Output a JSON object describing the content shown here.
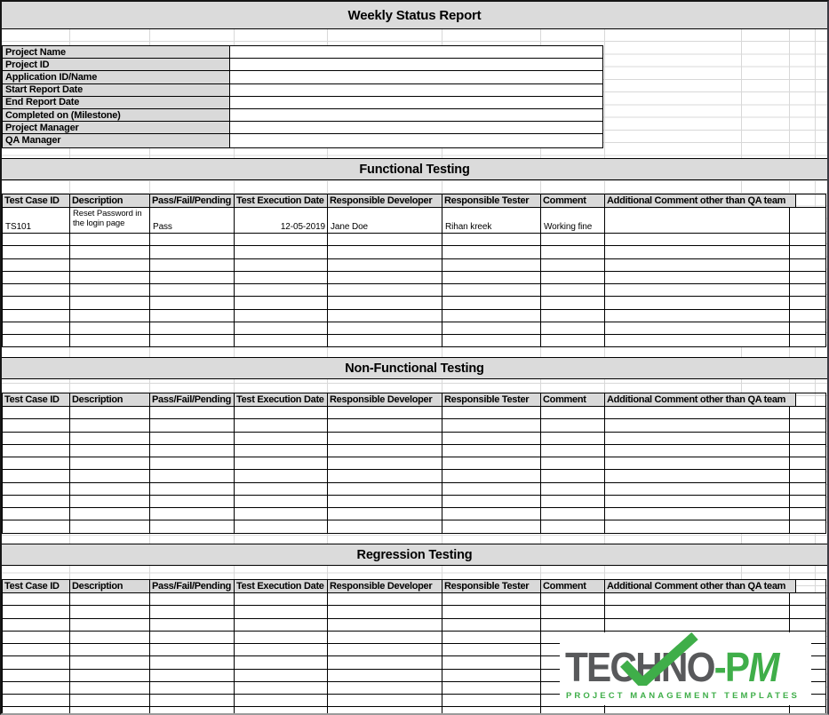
{
  "title": "Weekly Status Report",
  "project_info": {
    "rows": [
      {
        "label": "Project Name",
        "value": ""
      },
      {
        "label": "Project ID",
        "value": ""
      },
      {
        "label": "Application ID/Name",
        "value": ""
      },
      {
        "label": "Start Report Date",
        "value": ""
      },
      {
        "label": "End Report Date",
        "value": ""
      },
      {
        "label": "Completed on (Milestone)",
        "value": ""
      },
      {
        "label": "Project Manager",
        "value": ""
      },
      {
        "label": "QA Manager",
        "value": ""
      }
    ]
  },
  "columns": [
    "Test Case ID",
    "Description",
    "Pass/Fail/Pending",
    "Test Execution Date",
    "Responsible Developer",
    "Responsible Tester",
    "Comment",
    "Additional Comment other than QA team"
  ],
  "sections": [
    {
      "title": "Functional Testing",
      "rows": [
        {
          "cells": [
            "TS101",
            "Reset Password in the login page",
            "Pass",
            "12-05-2019",
            "Jane Doe",
            "Rihan kreek",
            "Working fine",
            ""
          ]
        }
      ],
      "empty_row_count": 9
    },
    {
      "title": "Non-Functional Testing",
      "rows": [],
      "empty_row_count": 10
    },
    {
      "title": "Regression Testing",
      "rows": [],
      "empty_row_count": 10
    }
  ],
  "logo": {
    "brand_gray": "TECHNO",
    "brand_green": "-P",
    "brand_green_italic": "M",
    "tagline": "PROJECT MANAGEMENT TEMPLATES",
    "check_icon": "checkmark-icon"
  },
  "colors": {
    "brand_green": "#3fae49",
    "brand_gray": "#58595b",
    "banner_gray": "#dbdbdb",
    "header_gray": "#d9d9d9"
  }
}
